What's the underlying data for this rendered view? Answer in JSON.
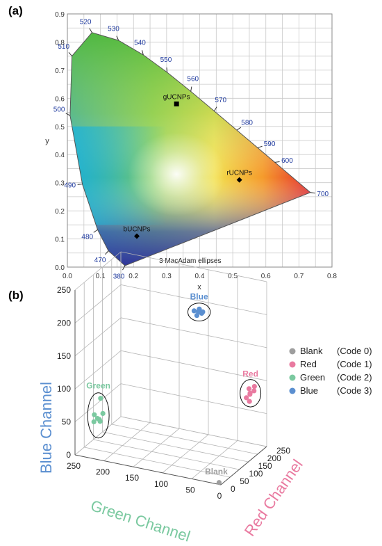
{
  "panels": {
    "a": "(a)",
    "b": "(b)"
  },
  "colors": {
    "blank": "#9e9e9e",
    "red": "#e97aa0",
    "green": "#7bc9a0",
    "blue": "#5b8fd0"
  },
  "chart_data": [
    {
      "type": "scatter",
      "xlabel": "x",
      "ylabel": "y",
      "xlim": [
        0.0,
        0.8
      ],
      "ylim": [
        0.0,
        0.9
      ],
      "x_ticks": [
        "0.0",
        "0.1",
        "0.2",
        "0.3",
        "0.4",
        "0.5",
        "0.6",
        "0.7",
        "0.8"
      ],
      "y_ticks": [
        "0.0",
        "0.1",
        "0.2",
        "0.3",
        "0.4",
        "0.5",
        "0.6",
        "0.7",
        "0.8",
        "0.9"
      ],
      "grid": true,
      "annotation": "3  MacAdam ellipses",
      "spectral_locus": [
        {
          "wl": "380",
          "x": 0.1741,
          "y": 0.005
        },
        {
          "wl": "470",
          "x": 0.1241,
          "y": 0.0578
        },
        {
          "wl": "480",
          "x": 0.0913,
          "y": 0.1329
        },
        {
          "wl": "490",
          "x": 0.0454,
          "y": 0.295
        },
        {
          "wl": "500",
          "x": 0.0082,
          "y": 0.5384
        },
        {
          "wl": "510",
          "x": 0.0139,
          "y": 0.7502
        },
        {
          "wl": "520",
          "x": 0.0743,
          "y": 0.8338
        },
        {
          "wl": "530",
          "x": 0.1547,
          "y": 0.8059
        },
        {
          "wl": "540",
          "x": 0.2296,
          "y": 0.7543
        },
        {
          "wl": "550",
          "x": 0.3016,
          "y": 0.6923
        },
        {
          "wl": "560",
          "x": 0.3731,
          "y": 0.6245
        },
        {
          "wl": "570",
          "x": 0.4441,
          "y": 0.5547
        },
        {
          "wl": "580",
          "x": 0.5125,
          "y": 0.4866
        },
        {
          "wl": "590",
          "x": 0.5752,
          "y": 0.4242
        },
        {
          "wl": "600",
          "x": 0.627,
          "y": 0.3725
        },
        {
          "wl": "700",
          "x": 0.7347,
          "y": 0.2653
        }
      ],
      "points": [
        {
          "label": "gUCNPs",
          "x": 0.33,
          "y": 0.58,
          "marker": "square"
        },
        {
          "label": "rUCNPs",
          "x": 0.52,
          "y": 0.31,
          "marker": "diamond"
        },
        {
          "label": "bUCNPs",
          "x": 0.21,
          "y": 0.11,
          "marker": "diamond"
        }
      ]
    },
    {
      "type": "scatter",
      "projection": "3d",
      "xlabel": "Red Channel",
      "ylabel": "Green Channel",
      "zlabel": "Blue Channel",
      "ticks": [
        "0",
        "50",
        "100",
        "150",
        "200",
        "250"
      ],
      "xlim": [
        0,
        250
      ],
      "ylim": [
        0,
        250
      ],
      "zlim": [
        0,
        250
      ],
      "legend_position": "top-right",
      "series": [
        {
          "name": "Blank",
          "code": "(Code 0)",
          "cluster_label": "Blank",
          "color": "#9e9e9e",
          "points": [
            [
              3,
              4,
              2
            ]
          ]
        },
        {
          "name": "Red",
          "code": "(Code 1)",
          "cluster_label": "Red",
          "color": "#e97aa0",
          "points": [
            [
              222,
              20,
              82
            ],
            [
              230,
              24,
              88
            ],
            [
              238,
              18,
              84
            ],
            [
              228,
              28,
              74
            ],
            [
              242,
              26,
              78
            ],
            [
              234,
              16,
              92
            ],
            [
              226,
              22,
              70
            ]
          ]
        },
        {
          "name": "Green",
          "code": "(Code 2)",
          "cluster_label": "Green",
          "color": "#7bc9a0",
          "points": [
            [
              6,
              208,
              92
            ],
            [
              8,
              214,
              60
            ],
            [
              12,
              206,
              68
            ],
            [
              16,
              212,
              54
            ],
            [
              10,
              220,
              64
            ],
            [
              14,
              222,
              52
            ],
            [
              18,
              214,
              56
            ]
          ]
        },
        {
          "name": "Blue",
          "code": "(Code 3)",
          "cluster_label": "Blue",
          "color": "#5b8fd0",
          "points": [
            [
              60,
              60,
              232
            ],
            [
              68,
              56,
              236
            ],
            [
              74,
              62,
              234
            ],
            [
              80,
              58,
              231
            ],
            [
              86,
              64,
              235
            ],
            [
              64,
              66,
              237
            ],
            [
              92,
              60,
              230
            ]
          ]
        }
      ]
    }
  ]
}
